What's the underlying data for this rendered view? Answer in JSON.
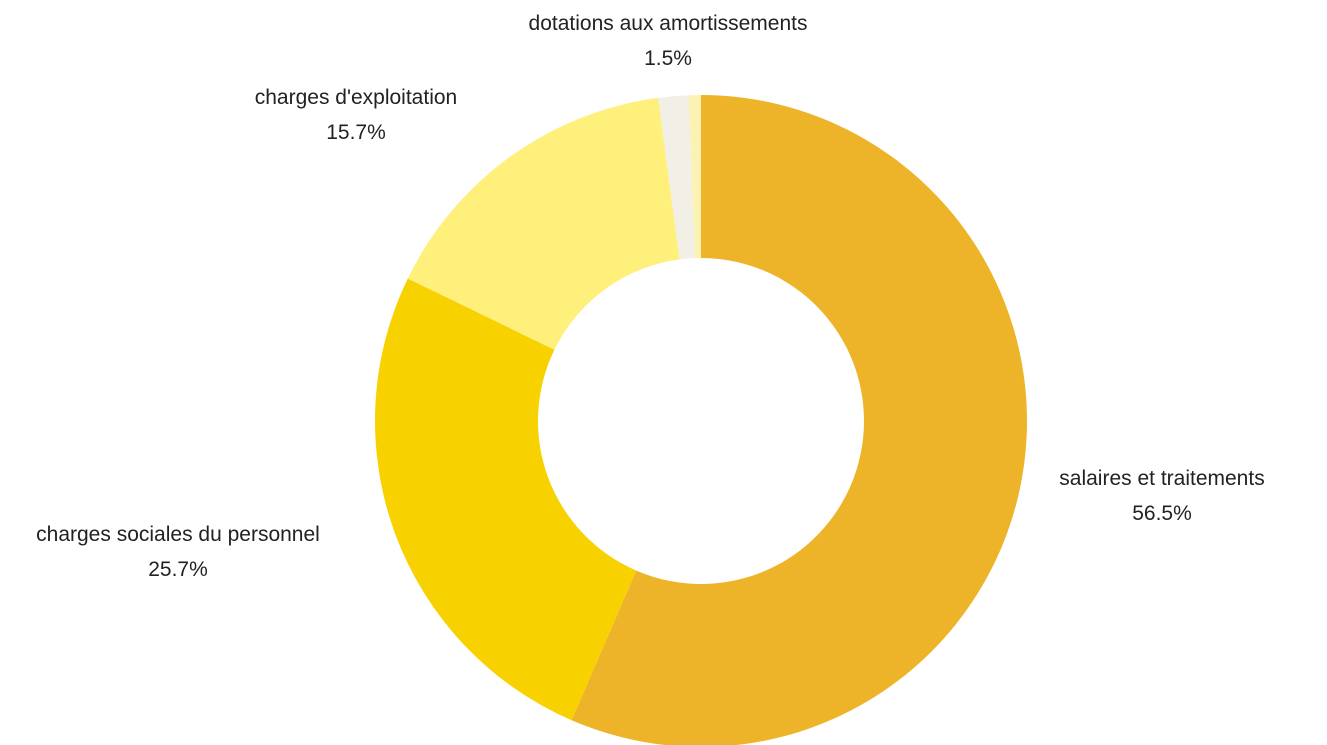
{
  "chart_data": {
    "type": "pie",
    "variant": "donut",
    "unit": "%",
    "slices": [
      {
        "label": "salaires et traitements",
        "value": 56.5,
        "value_label": "56.5%",
        "color": "#EDB42A"
      },
      {
        "label": "charges sociales du personnel",
        "value": 25.7,
        "value_label": "25.7%",
        "color": "#F8D100"
      },
      {
        "label": "charges d'exploitation",
        "value": 15.7,
        "value_label": "15.7%",
        "color": "#FEF07B"
      },
      {
        "label": "dotations aux amortissements",
        "value": 1.5,
        "value_label": "1.5%",
        "color": "#F2EFE6"
      },
      {
        "label": "",
        "value": 0.6,
        "value_label": "",
        "color": "#FCF2B4"
      }
    ],
    "legend": "none",
    "labels": "outside"
  }
}
